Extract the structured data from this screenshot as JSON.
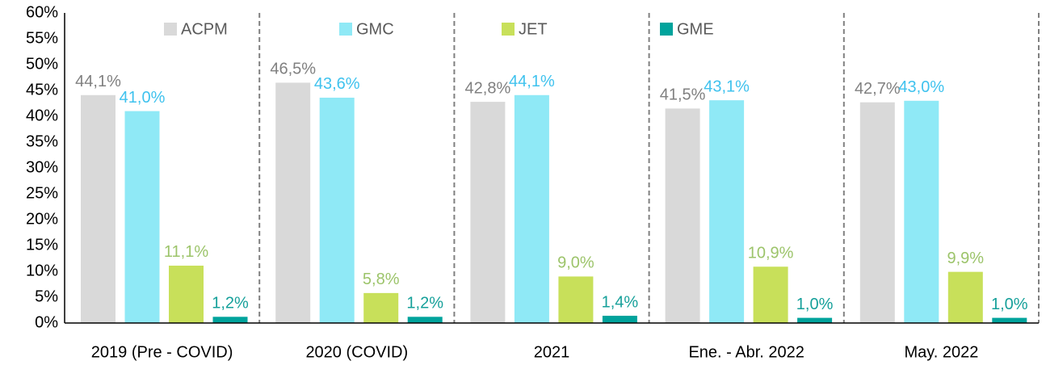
{
  "chart_data": {
    "type": "bar",
    "categories": [
      "2019 (Pre - COVID)",
      "2020 (COVID)",
      "2021",
      "Ene. - Abr. 2022",
      "May. 2022"
    ],
    "series": [
      {
        "name": "ACPM",
        "color": "#d9d9d9",
        "label_color": "#808080",
        "values": [
          44.1,
          46.5,
          42.8,
          41.5,
          42.7
        ],
        "value_labels": [
          "44,1%",
          "46,5%",
          "42,8%",
          "41,5%",
          "42,7%"
        ]
      },
      {
        "name": "GMC",
        "color": "#8fe9f6",
        "label_color": "#3fc2ee",
        "values": [
          41.0,
          43.6,
          44.1,
          43.1,
          43.0
        ],
        "value_labels": [
          "41,0%",
          "43,6%",
          "44,1%",
          "43,1%",
          "43,0%"
        ]
      },
      {
        "name": "JET",
        "color": "#c8e05a",
        "label_color": "#9cc46a",
        "values": [
          11.1,
          5.8,
          9.0,
          10.9,
          9.9
        ],
        "value_labels": [
          "11,1%",
          "5,8%",
          "9,0%",
          "10,9%",
          "9,9%"
        ]
      },
      {
        "name": "GME",
        "color": "#00a39c",
        "label_color": "#16a09a",
        "values": [
          1.2,
          1.2,
          1.4,
          1.0,
          1.0
        ],
        "value_labels": [
          "1,2%",
          "1,2%",
          "1,4%",
          "1,0%",
          "1,0%"
        ]
      }
    ],
    "ylim": [
      0,
      60
    ],
    "yticks": [
      {
        "value": 0,
        "label": "0%"
      },
      {
        "value": 5,
        "label": "5%"
      },
      {
        "value": 10,
        "label": "10%"
      },
      {
        "value": 15,
        "label": "15%"
      },
      {
        "value": 20,
        "label": "20%"
      },
      {
        "value": 25,
        "label": "25%"
      },
      {
        "value": 30,
        "label": "30%"
      },
      {
        "value": 35,
        "label": "35%"
      },
      {
        "value": 40,
        "label": "40%"
      },
      {
        "value": 45,
        "label": "45%"
      },
      {
        "value": 50,
        "label": "50%"
      },
      {
        "value": 55,
        "label": "55%"
      },
      {
        "value": 60,
        "label": "60%"
      }
    ],
    "legend": "top"
  }
}
